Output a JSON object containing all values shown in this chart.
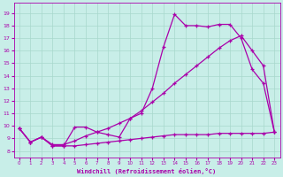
{
  "xlabel": "Windchill (Refroidissement éolien,°C)",
  "x_ticks": [
    0,
    1,
    2,
    3,
    4,
    5,
    6,
    7,
    8,
    9,
    10,
    11,
    12,
    13,
    14,
    15,
    16,
    17,
    18,
    19,
    20,
    21,
    22,
    23
  ],
  "y_ticks": [
    8,
    9,
    10,
    11,
    12,
    13,
    14,
    15,
    16,
    17,
    18,
    19
  ],
  "ylim": [
    7.5,
    19.8
  ],
  "xlim": [
    -0.5,
    23.5
  ],
  "line_color": "#aa00aa",
  "bg_color": "#c8eee8",
  "grid_color": "#a8d8cc",
  "series1_x": [
    0,
    1,
    2,
    3,
    4,
    5,
    6,
    7,
    8,
    9,
    10,
    11,
    12,
    13,
    14,
    15,
    16,
    17,
    18,
    19,
    20,
    21,
    22,
    23
  ],
  "series1_y": [
    9.8,
    8.7,
    9.1,
    8.4,
    8.4,
    9.9,
    9.9,
    9.5,
    9.3,
    9.1,
    10.6,
    11.0,
    13.0,
    16.3,
    18.9,
    18.0,
    18.0,
    17.9,
    18.1,
    18.1,
    17.0,
    14.5,
    13.4,
    9.5
  ],
  "series2_x": [
    0,
    1,
    2,
    3,
    4,
    5,
    6,
    7,
    8,
    9,
    10,
    11,
    12,
    13,
    14,
    15,
    16,
    17,
    18,
    19,
    20,
    21,
    22,
    23
  ],
  "series2_y": [
    9.8,
    8.7,
    9.1,
    8.5,
    8.5,
    8.8,
    9.2,
    9.5,
    9.8,
    10.2,
    10.6,
    11.2,
    11.9,
    12.6,
    13.4,
    14.1,
    14.8,
    15.5,
    16.2,
    16.8,
    17.2,
    16.0,
    14.8,
    9.5
  ],
  "series3_x": [
    0,
    1,
    2,
    3,
    4,
    5,
    6,
    7,
    8,
    9,
    10,
    11,
    12,
    13,
    14,
    15,
    16,
    17,
    18,
    19,
    20,
    21,
    22,
    23
  ],
  "series3_y": [
    9.8,
    8.7,
    9.1,
    8.4,
    8.4,
    8.4,
    8.5,
    8.6,
    8.7,
    8.8,
    8.9,
    9.0,
    9.1,
    9.2,
    9.3,
    9.3,
    9.3,
    9.3,
    9.4,
    9.4,
    9.4,
    9.4,
    9.4,
    9.5
  ]
}
